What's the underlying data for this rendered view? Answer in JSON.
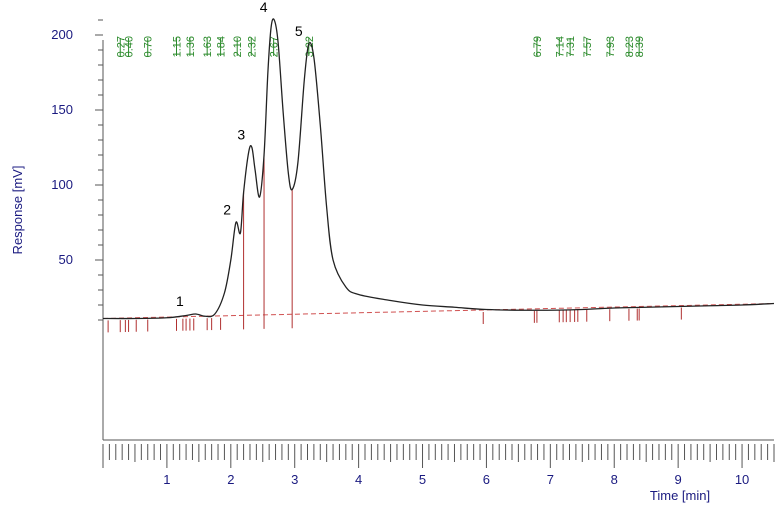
{
  "chart_data": {
    "type": "line",
    "xlabel": "Time [min]",
    "ylabel": "Response [mV]",
    "xlim": [
      0,
      10.5
    ],
    "ylim": [
      -70,
      220
    ],
    "x_ticks": [
      "1",
      "2",
      "3",
      "4",
      "5",
      "6",
      "7",
      "8",
      "9",
      "10"
    ],
    "y_ticks": [
      "50",
      "100",
      "150",
      "200"
    ],
    "grid": false,
    "colors": {
      "trace": "#222222",
      "baseline": "#d05050",
      "markers": "#b03030",
      "retention_labels": "#2a8a2a",
      "axis_text": "#1a1a80"
    },
    "trace": {
      "x": [
        0,
        0.5,
        1.0,
        1.3,
        1.45,
        1.6,
        1.75,
        1.9,
        2.0,
        2.08,
        2.15,
        2.2,
        2.28,
        2.33,
        2.38,
        2.45,
        2.52,
        2.58,
        2.63,
        2.68,
        2.74,
        2.82,
        2.9,
        2.96,
        3.05,
        3.15,
        3.22,
        3.3,
        3.4,
        3.5,
        3.6,
        3.8,
        4.0,
        4.5,
        5.0,
        5.5,
        6.0,
        6.8,
        7.5,
        8.0,
        8.5,
        9.0,
        9.5,
        10.0,
        10.5
      ],
      "y": [
        11,
        11,
        11.5,
        13,
        14,
        12.5,
        14,
        28,
        50,
        75,
        68,
        95,
        122,
        125,
        110,
        92,
        120,
        175,
        205,
        210,
        195,
        148,
        108,
        97,
        115,
        170,
        194,
        185,
        140,
        85,
        50,
        32,
        27,
        23,
        20,
        18.5,
        17,
        16.5,
        17,
        18,
        18.5,
        19,
        19.5,
        20,
        21
      ]
    },
    "baseline": {
      "x": [
        0,
        10.5
      ],
      "y": [
        11,
        21
      ]
    },
    "peaks": [
      {
        "label": "1",
        "x": 1.36,
        "y": 14
      },
      {
        "label": "2",
        "x": 2.1,
        "y": 75
      },
      {
        "label": "3",
        "x": 2.32,
        "y": 125
      },
      {
        "label": "4",
        "x": 2.67,
        "y": 210
      },
      {
        "label": "5",
        "x": 3.22,
        "y": 194
      }
    ],
    "peak_drop_lines_x": [
      2.2,
      2.52,
      2.96
    ],
    "retention_times": [
      "0.27",
      "0.40",
      "0.70",
      "1.15",
      "1.36",
      "1.63",
      "1.84",
      "2.10",
      "2.32",
      "2.67",
      "3.22",
      "6.79",
      "7.14",
      "7.31",
      "7.57",
      "7.93",
      "8.23",
      "8.39"
    ],
    "event_marks_x": [
      0.08,
      0.27,
      0.35,
      0.4,
      0.52,
      0.7,
      1.15,
      1.25,
      1.3,
      1.36,
      1.42,
      1.63,
      1.7,
      1.84,
      5.95,
      6.75,
      6.79,
      7.14,
      7.2,
      7.25,
      7.31,
      7.38,
      7.43,
      7.57,
      7.93,
      8.23,
      8.36,
      8.39,
      9.05
    ]
  }
}
